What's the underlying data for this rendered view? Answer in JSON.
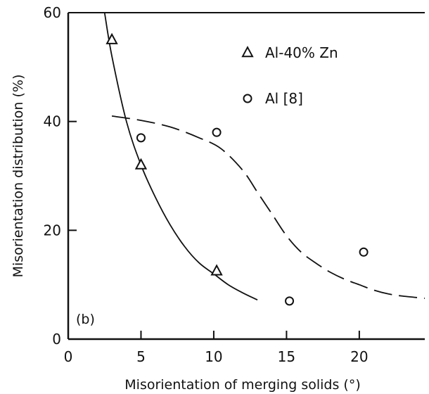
{
  "chart_data": {
    "type": "scatter",
    "xlabel": "Misorientation of merging solids (°)",
    "ylabel": "Misorientation distribution (%)",
    "xlim": [
      0,
      24.5
    ],
    "ylim": [
      0,
      60
    ],
    "x_ticks": [
      0,
      5,
      10,
      15,
      20
    ],
    "y_ticks": [
      0,
      20,
      40,
      60
    ],
    "x_tick_labels": [
      "0",
      "5",
      "10",
      "15",
      "20"
    ],
    "y_tick_labels": [
      "0",
      "20",
      "40",
      "60"
    ],
    "grid": false,
    "legend_position": "top-right",
    "panel_label": "(b)",
    "series": [
      {
        "name": "Al-40% Zn",
        "marker": "triangle",
        "points": [
          {
            "x": 3,
            "y": 55
          },
          {
            "x": 5,
            "y": 32
          },
          {
            "x": 10.2,
            "y": 12.5
          }
        ],
        "curve_style": "solid",
        "curve": [
          {
            "x": 2.5,
            "y": 60
          },
          {
            "x": 3,
            "y": 52
          },
          {
            "x": 4,
            "y": 40
          },
          {
            "x": 5,
            "y": 32
          },
          {
            "x": 6,
            "y": 26
          },
          {
            "x": 7,
            "y": 21
          },
          {
            "x": 8,
            "y": 17
          },
          {
            "x": 9,
            "y": 14
          },
          {
            "x": 10,
            "y": 12
          },
          {
            "x": 11,
            "y": 10
          },
          {
            "x": 12,
            "y": 8.5
          },
          {
            "x": 13,
            "y": 7.2
          }
        ]
      },
      {
        "name": "Al [8]",
        "marker": "circle",
        "points": [
          {
            "x": 5,
            "y": 37
          },
          {
            "x": 10.2,
            "y": 38
          },
          {
            "x": 15.2,
            "y": 7
          },
          {
            "x": 20.3,
            "y": 16
          }
        ],
        "curve_style": "dashed",
        "curve": [
          {
            "x": 3,
            "y": 41
          },
          {
            "x": 5,
            "y": 40.2
          },
          {
            "x": 7,
            "y": 39
          },
          {
            "x": 9,
            "y": 37
          },
          {
            "x": 10.5,
            "y": 35
          },
          {
            "x": 12,
            "y": 31
          },
          {
            "x": 13,
            "y": 27
          },
          {
            "x": 14,
            "y": 23
          },
          {
            "x": 15,
            "y": 19
          },
          {
            "x": 16,
            "y": 16
          },
          {
            "x": 17,
            "y": 14
          },
          {
            "x": 18,
            "y": 12.3
          },
          {
            "x": 19,
            "y": 11
          },
          {
            "x": 20,
            "y": 10
          },
          {
            "x": 21,
            "y": 9
          },
          {
            "x": 22,
            "y": 8.3
          },
          {
            "x": 23,
            "y": 7.9
          },
          {
            "x": 24.5,
            "y": 7.5
          }
        ]
      }
    ],
    "legend": [
      {
        "marker": "triangle",
        "label": "Al-40% Zn"
      },
      {
        "marker": "circle",
        "label": "Al [8]"
      }
    ]
  }
}
